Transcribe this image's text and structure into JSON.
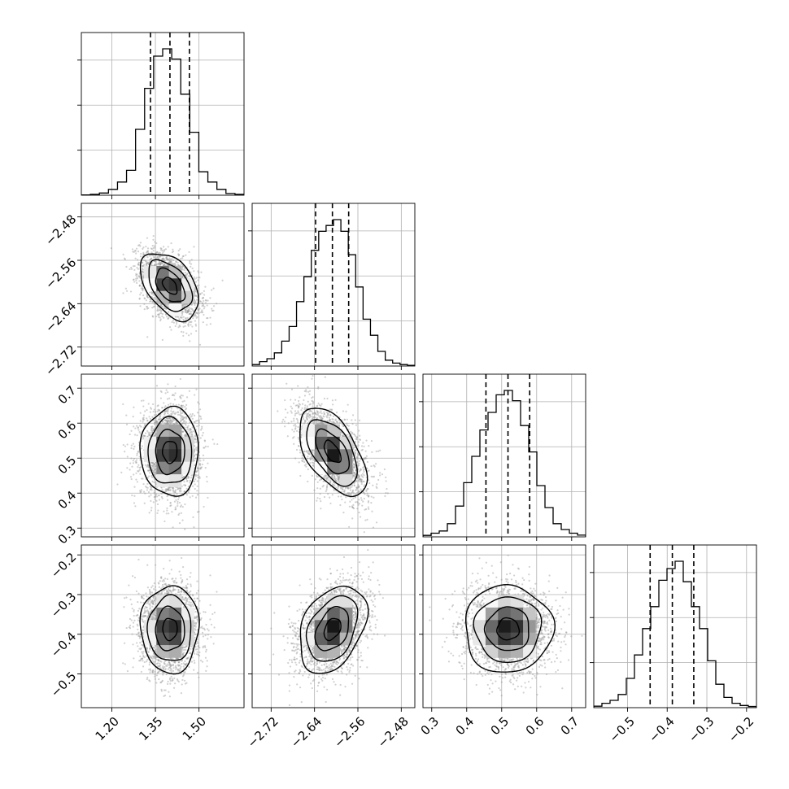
{
  "chart_data": {
    "type": "corner",
    "parameters": [
      {
        "label": "",
        "range": [
          1.095,
          1.655
        ],
        "ticks": [
          1.2,
          1.35,
          1.5
        ],
        "tick_labels": [
          "1.20",
          "1.35",
          "1.50"
        ],
        "quantiles": [
          1.333,
          1.4,
          1.467
        ],
        "histogram": [
          0.002,
          0.006,
          0.015,
          0.04,
          0.09,
          0.17,
          0.45,
          0.73,
          0.95,
          1.0,
          0.93,
          0.69,
          0.43,
          0.16,
          0.09,
          0.04,
          0.012,
          0.006
        ]
      },
      {
        "label": "",
        "range": [
          -2.755,
          -2.455
        ],
        "ticks": [
          -2.72,
          -2.64,
          -2.56,
          -2.48
        ],
        "tick_labels": [
          "−2.72",
          "−2.64",
          "−2.56",
          "−2.48"
        ],
        "quantiles": [
          -2.638,
          -2.607,
          -2.577
        ],
        "histogram": [
          0.01,
          0.03,
          0.05,
          0.09,
          0.17,
          0.27,
          0.44,
          0.61,
          0.79,
          0.92,
          0.96,
          1.0,
          0.92,
          0.76,
          0.54,
          0.32,
          0.21,
          0.1,
          0.04,
          0.02,
          0.01,
          0.005
        ]
      },
      {
        "label": "",
        "range": [
          0.275,
          0.74
        ],
        "ticks": [
          0.3,
          0.4,
          0.5,
          0.6,
          0.7
        ],
        "tick_labels": [
          "0.3",
          "0.4",
          "0.5",
          "0.6",
          "0.7"
        ],
        "quantiles": [
          0.455,
          0.518,
          0.58
        ],
        "histogram": [
          0.01,
          0.025,
          0.04,
          0.09,
          0.21,
          0.37,
          0.55,
          0.73,
          0.85,
          0.97,
          1.0,
          0.93,
          0.76,
          0.58,
          0.35,
          0.2,
          0.09,
          0.05,
          0.025,
          0.012
        ]
      },
      {
        "label": "",
        "range": [
          -0.585,
          -0.175
        ],
        "ticks": [
          -0.5,
          -0.4,
          -0.3,
          -0.2
        ],
        "tick_labels": [
          "−0.5",
          "−0.4",
          "−0.3",
          "−0.2"
        ],
        "quantiles": [
          -0.443,
          -0.387,
          -0.333
        ],
        "histogram": [
          0.01,
          0.03,
          0.05,
          0.09,
          0.2,
          0.36,
          0.54,
          0.69,
          0.87,
          0.95,
          1.0,
          0.86,
          0.69,
          0.54,
          0.32,
          0.16,
          0.07,
          0.03,
          0.015,
          0.008
        ]
      }
    ],
    "mean": [
      1.4,
      -2.607,
      0.518,
      -0.387
    ],
    "sigma": [
      0.05,
      0.031,
      0.063,
      0.055
    ],
    "correlation": [
      [
        1.0,
        -0.45,
        0.0,
        0.0
      ],
      [
        -0.45,
        1.0,
        -0.55,
        0.35
      ],
      [
        0.0,
        -0.55,
        1.0,
        0.0
      ],
      [
        0.0,
        0.35,
        0.0,
        1.0
      ]
    ],
    "contour_levels_sigma": [
      0.5,
      1.0,
      1.5,
      2.0
    ],
    "grid": true,
    "quantile_line_style": "dashed",
    "points_per_panel": 2500
  }
}
